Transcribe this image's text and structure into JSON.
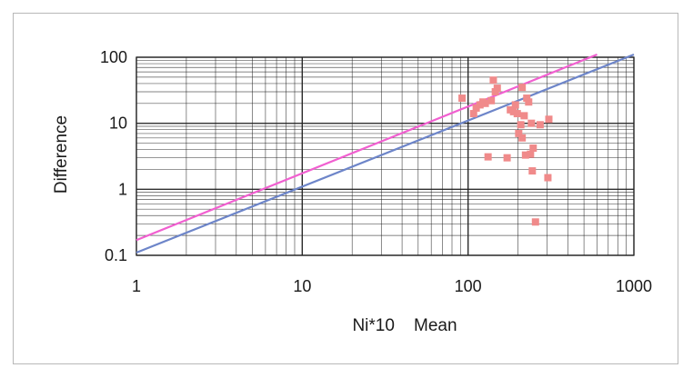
{
  "chart_data": {
    "type": "scatter",
    "title": "",
    "xlabel": "Ni*10    Mean",
    "ylabel": "Difference",
    "x_scale": "log",
    "y_scale": "log",
    "xlim": [
      1,
      1000
    ],
    "ylim": [
      0.1,
      100
    ],
    "x_ticks": [
      "1",
      "10",
      "100",
      "1000"
    ],
    "y_ticks": [
      "0.1",
      "1",
      "10",
      "100"
    ],
    "grid": true,
    "colors": {
      "points": "#f08a8a",
      "line_upper": "#f15fd0",
      "line_lower": "#6d85c9",
      "grid": "#222222"
    },
    "lines": [
      {
        "color": "#f15fd0",
        "points": [
          [
            1,
            0.17
          ],
          [
            600,
            110
          ]
        ]
      },
      {
        "color": "#6d85c9",
        "points": [
          [
            1,
            0.11
          ],
          [
            1000,
            110
          ]
        ]
      }
    ],
    "points": [
      [
        92,
        24
      ],
      [
        108,
        14
      ],
      [
        112,
        17
      ],
      [
        118,
        19
      ],
      [
        123,
        21
      ],
      [
        127,
        20
      ],
      [
        132,
        3.1
      ],
      [
        138,
        22
      ],
      [
        142,
        45
      ],
      [
        146,
        30
      ],
      [
        150,
        34
      ],
      [
        172,
        3.0
      ],
      [
        180,
        16
      ],
      [
        188,
        15
      ],
      [
        193,
        19
      ],
      [
        198,
        14
      ],
      [
        202,
        7
      ],
      [
        208,
        9.5
      ],
      [
        212,
        6
      ],
      [
        212,
        35
      ],
      [
        218,
        13
      ],
      [
        222,
        3.3
      ],
      [
        226,
        24
      ],
      [
        232,
        21
      ],
      [
        238,
        3.4
      ],
      [
        241,
        10
      ],
      [
        244,
        1.9
      ],
      [
        247,
        4.2
      ],
      [
        255,
        0.32
      ],
      [
        272,
        9.5
      ],
      [
        303,
        1.5
      ],
      [
        307,
        11.5
      ]
    ]
  }
}
